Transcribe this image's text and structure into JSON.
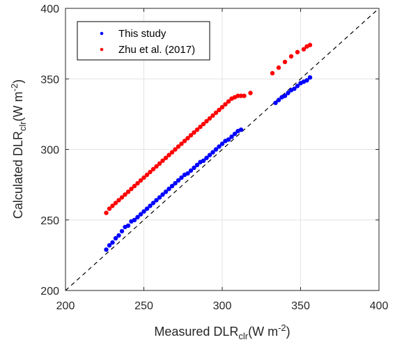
{
  "chart_data": {
    "type": "scatter",
    "title": "",
    "xlabel": "Measured DLR",
    "xlabel_sub": "clr",
    "xlabel_unit": "(W m",
    "xlabel_sup": "-2",
    "xlabel_close": ")",
    "ylabel": "Calculated DLR",
    "ylabel_sub": "clr",
    "ylabel_unit": "(W m",
    "ylabel_sup": "-2",
    "ylabel_close": ")",
    "xlim": [
      200,
      400
    ],
    "ylim": [
      200,
      400
    ],
    "xticks": [
      "200",
      "250",
      "300",
      "350",
      "400"
    ],
    "yticks": [
      "200",
      "250",
      "300",
      "350",
      "400"
    ],
    "grid": true,
    "legend_position": "top-left",
    "reference_line": "1:1 dashed",
    "series": [
      {
        "name": "This study",
        "color": "#0000ff",
        "x": [
          226,
          228,
          230,
          232,
          234,
          236,
          238,
          240,
          242,
          244,
          246,
          248,
          250,
          252,
          254,
          256,
          258,
          260,
          262,
          264,
          266,
          268,
          270,
          272,
          274,
          276,
          278,
          280,
          282,
          284,
          286,
          288,
          290,
          292,
          294,
          296,
          298,
          300,
          302,
          304,
          306,
          308,
          310,
          312,
          334,
          336,
          338,
          340,
          342,
          344,
          346,
          348,
          350,
          352,
          354,
          356
        ],
        "y": [
          229,
          232,
          234,
          237,
          239,
          242,
          245,
          246,
          249,
          250,
          252,
          254,
          256,
          258,
          260,
          262,
          264,
          266,
          268,
          270,
          272,
          274,
          276,
          278,
          280,
          282,
          283,
          285,
          287,
          289,
          291,
          292,
          294,
          296,
          298,
          300,
          302,
          304,
          306,
          307,
          309,
          311,
          313,
          314,
          333,
          335,
          337,
          338,
          340,
          342,
          343,
          345,
          347,
          348,
          349,
          351
        ]
      },
      {
        "name": "Zhu et al. (2017)",
        "color": "#ff0000",
        "x": [
          226,
          228,
          230,
          232,
          234,
          236,
          238,
          240,
          242,
          244,
          246,
          248,
          250,
          252,
          254,
          256,
          258,
          260,
          262,
          264,
          266,
          268,
          270,
          272,
          274,
          276,
          278,
          280,
          282,
          284,
          286,
          288,
          290,
          292,
          294,
          296,
          298,
          300,
          302,
          304,
          306,
          308,
          310,
          312,
          314,
          318,
          332,
          336,
          340,
          344,
          348,
          352,
          354,
          356
        ],
        "y": [
          255,
          258,
          260,
          262,
          264,
          266,
          268,
          270,
          272,
          274,
          276,
          278,
          280,
          282,
          284,
          286,
          288,
          290,
          292,
          294,
          296,
          298,
          300,
          302,
          304,
          306,
          308,
          310,
          312,
          314,
          316,
          318,
          320,
          322,
          324,
          326,
          328,
          330,
          332,
          334,
          336,
          337,
          338,
          338,
          338,
          340,
          354,
          358,
          362,
          366,
          369,
          371,
          373,
          374
        ]
      }
    ]
  }
}
